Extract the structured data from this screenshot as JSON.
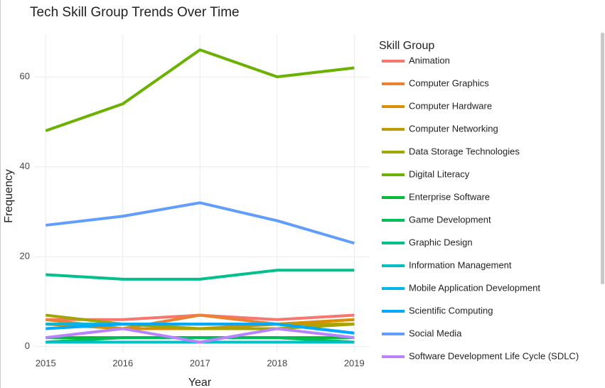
{
  "chart_data": {
    "type": "line",
    "title": "Tech Skill Group Trends Over Time",
    "x_label": "Year",
    "y_label": "Frequency",
    "legend_title": "Skill Group",
    "x": [
      2015,
      2016,
      2017,
      2018,
      2019
    ],
    "xlim": [
      2014.85,
      2019.2
    ],
    "xticks": [
      2015,
      2016,
      2017,
      2018,
      2019
    ],
    "ylim": [
      -1.3,
      69.5
    ],
    "yticks": [
      0,
      20,
      40,
      60
    ],
    "grid": true,
    "series": [
      {
        "name": "Animation",
        "color": "#F8766D",
        "values": [
          6,
          6,
          7,
          6,
          7
        ]
      },
      {
        "name": "Computer Graphics",
        "color": "#EA8331",
        "values": [
          6,
          4,
          7,
          5,
          6
        ]
      },
      {
        "name": "Computer Hardware",
        "color": "#D89000",
        "values": [
          5,
          4,
          4,
          5,
          6
        ]
      },
      {
        "name": "Computer Networking",
        "color": "#C09B00",
        "values": [
          5,
          5,
          5,
          5,
          5
        ]
      },
      {
        "name": "Data Storage Technologies",
        "color": "#A3A500",
        "values": [
          7,
          5,
          4,
          4,
          5
        ]
      },
      {
        "name": "Digital Literacy",
        "color": "#6BB100",
        "values": [
          48,
          54,
          66,
          60,
          62
        ]
      },
      {
        "name": "Enterprise Software",
        "color": "#00BA38",
        "values": [
          2,
          2,
          2,
          2,
          2
        ]
      },
      {
        "name": "Game Development",
        "color": "#00BD5C",
        "values": [
          1,
          2,
          2,
          2,
          1
        ]
      },
      {
        "name": "Graphic Design",
        "color": "#00C08B",
        "values": [
          16,
          15,
          15,
          17,
          17
        ]
      },
      {
        "name": "Information Management",
        "color": "#00BFC4",
        "values": [
          1,
          1,
          1,
          1,
          1
        ]
      },
      {
        "name": "Mobile Application Development",
        "color": "#00B8E7",
        "values": [
          5,
          5,
          5,
          5,
          3
        ]
      },
      {
        "name": "Scientific Computing",
        "color": "#00A9FF",
        "values": [
          4,
          5,
          5,
          5,
          3
        ]
      },
      {
        "name": "Social Media",
        "color": "#619CFF",
        "values": [
          27,
          29,
          32,
          28,
          23
        ]
      },
      {
        "name": "Software Development Life Cycle (SDLC)",
        "color": "#B983FF",
        "values": [
          2,
          4,
          1,
          4,
          2
        ]
      }
    ]
  }
}
